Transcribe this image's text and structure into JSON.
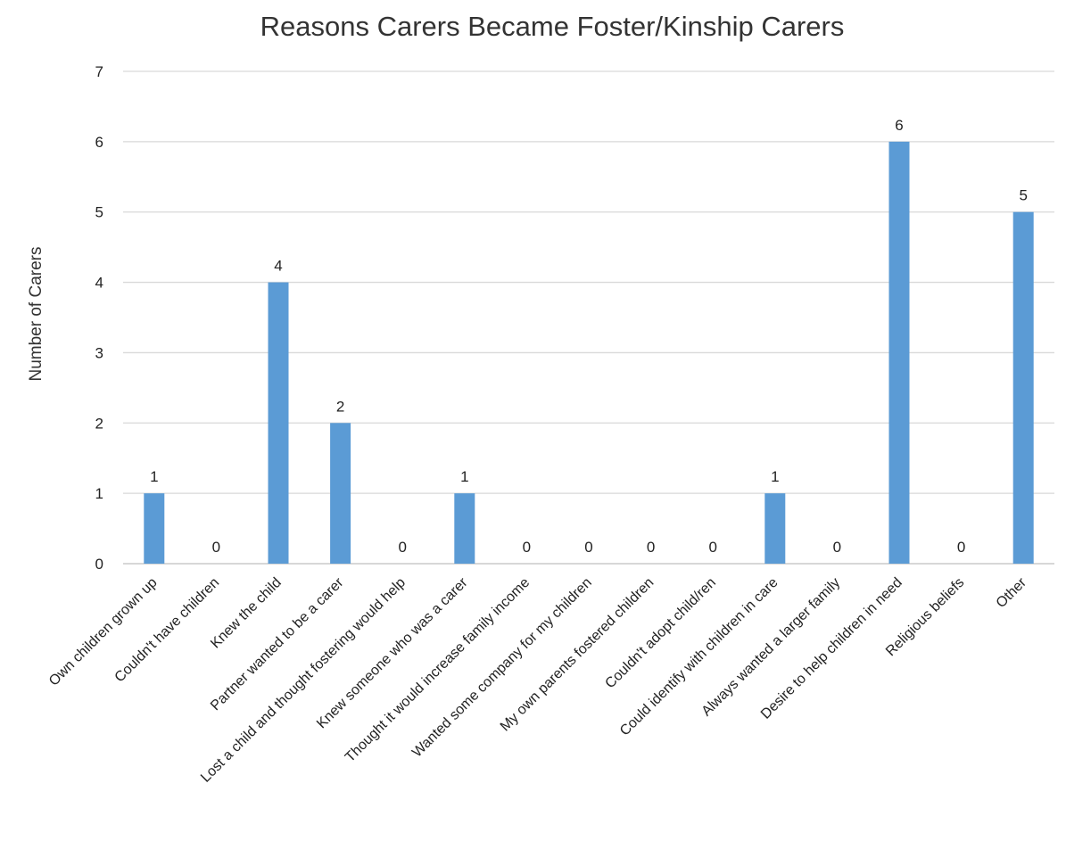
{
  "chart_data": {
    "type": "bar",
    "title": "Reasons Carers Became Foster/Kinship Carers",
    "xlabel": "",
    "ylabel": "Number  of Carers",
    "ylim": [
      0,
      7
    ],
    "yticks": [
      0,
      1,
      2,
      3,
      4,
      5,
      6,
      7
    ],
    "grid": true,
    "legend": "none",
    "bar_color": "#5b9bd5",
    "data_labels": true,
    "categories": [
      "Own children grown up",
      "Couldn't have children",
      "Knew the child",
      "Partner wanted to be a carer",
      "Lost a child and thought fostering would help",
      "Knew someone who was a carer",
      "Thought it would increase family income",
      "Wanted some company for my children",
      "My own parents fostered children",
      "Couldn't adopt child/ren",
      "Could identify with children in care",
      "Always wanted a larger family",
      "Desire to help children in need",
      "Religious beliefs",
      "Other"
    ],
    "values": [
      1,
      0,
      4,
      2,
      0,
      1,
      0,
      0,
      0,
      0,
      1,
      0,
      6,
      0,
      5
    ]
  }
}
